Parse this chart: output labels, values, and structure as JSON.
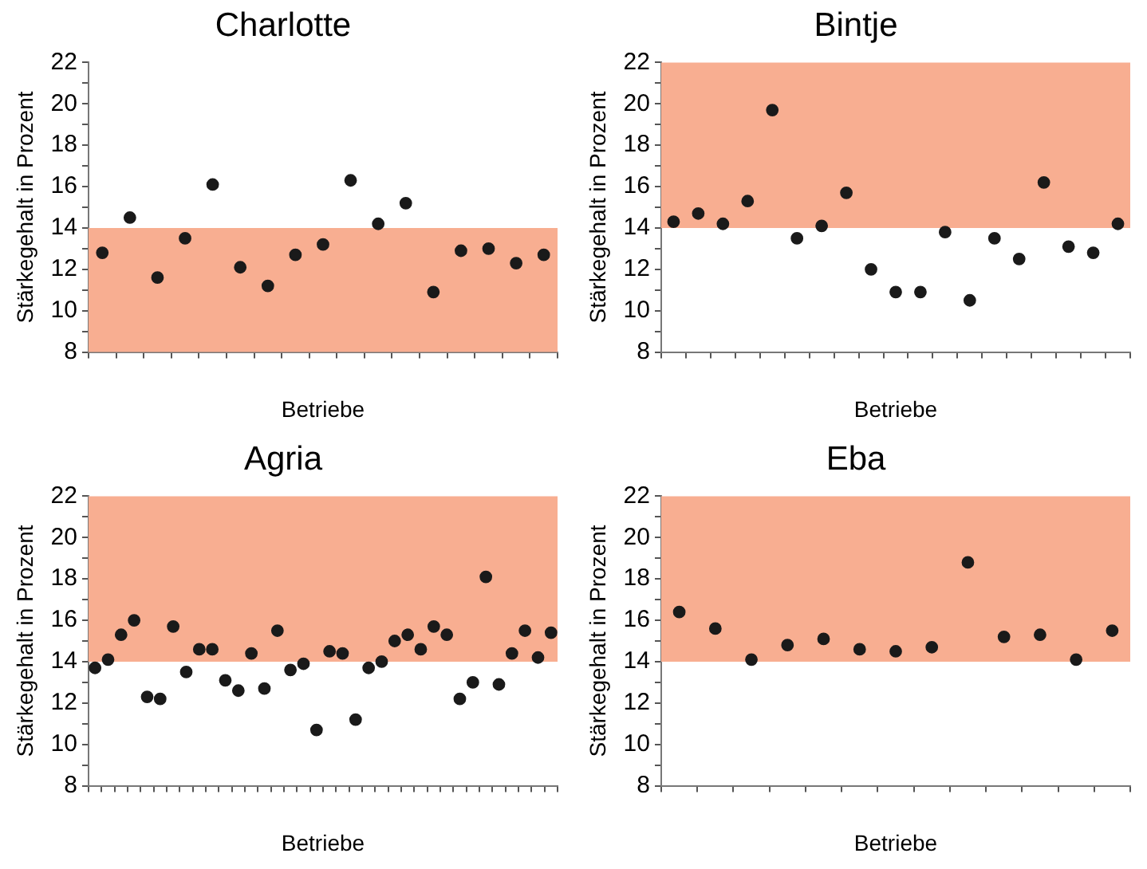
{
  "chart_data": [
    {
      "type": "scatter",
      "title": "Charlotte",
      "xlabel": "Betriebe",
      "ylabel": "Stärkegehalt in Prozent",
      "categories": [
        null,
        null,
        null,
        null,
        null,
        null,
        null,
        null,
        null,
        null,
        null,
        null,
        null,
        null,
        null,
        null,
        null
      ],
      "series": [
        {
          "color": "#1a1a1a",
          "values": [
            12.8,
            14.5,
            11.6,
            13.5,
            16.1,
            12.1,
            11.2,
            12.7,
            13.2,
            16.3,
            14.2,
            15.2,
            10.9,
            12.9,
            13.0,
            12.3,
            12.7
          ]
        }
      ],
      "ylim": [
        8,
        22
      ],
      "yticks": [
        8,
        {
          "value": 9,
          "label": null
        },
        10,
        {
          "value": 11,
          "label": null
        },
        12,
        {
          "value": 13,
          "label": null
        },
        14,
        {
          "value": 15,
          "label": null
        },
        16,
        {
          "value": 17,
          "label": null
        },
        18,
        {
          "value": 19,
          "label": null
        },
        20,
        {
          "value": 21,
          "label": null
        },
        22
      ],
      "bands": [
        {
          "axis": "y",
          "from": 8,
          "to": 14,
          "label": null,
          "color": "#f8ae91"
        }
      ],
      "marker": "circle",
      "grid": false,
      "legend": false
    },
    {
      "type": "scatter",
      "title": "Bintje",
      "xlabel": "Betriebe",
      "ylabel": "Stärkegehalt in Prozent",
      "categories": [
        null,
        null,
        null,
        null,
        null,
        null,
        null,
        null,
        null,
        null,
        null,
        null,
        null,
        null,
        null,
        null,
        null,
        null,
        null
      ],
      "series": [
        {
          "color": "#1a1a1a",
          "values": [
            14.3,
            14.7,
            14.2,
            15.3,
            19.7,
            13.5,
            14.1,
            15.7,
            12.0,
            10.9,
            10.9,
            13.8,
            10.5,
            13.5,
            12.5,
            16.2,
            13.1,
            12.8,
            14.2
          ]
        }
      ],
      "ylim": [
        8,
        22
      ],
      "yticks": [
        8,
        {
          "value": 9,
          "label": null
        },
        10,
        {
          "value": 11,
          "label": null
        },
        12,
        {
          "value": 13,
          "label": null
        },
        14,
        {
          "value": 15,
          "label": null
        },
        16,
        {
          "value": 17,
          "label": null
        },
        18,
        {
          "value": 19,
          "label": null
        },
        20,
        {
          "value": 21,
          "label": null
        },
        22
      ],
      "bands": [
        {
          "axis": "y",
          "from": 14,
          "to": 22,
          "label": null,
          "color": "#f8ae91"
        }
      ],
      "marker": "circle",
      "grid": false,
      "legend": false
    },
    {
      "type": "scatter",
      "title": "Agria",
      "xlabel": "Betriebe",
      "ylabel": "Stärkegehalt in Prozent",
      "categories": [
        null,
        null,
        null,
        null,
        null,
        null,
        null,
        null,
        null,
        null,
        null,
        null,
        null,
        null,
        null,
        null,
        null,
        null,
        null,
        null,
        null,
        null,
        null,
        null,
        null,
        null,
        null,
        null,
        null,
        null,
        null,
        null,
        null,
        null,
        null,
        null
      ],
      "series": [
        {
          "color": "#1a1a1a",
          "values": [
            13.7,
            14.1,
            15.3,
            16.0,
            12.3,
            12.2,
            15.7,
            13.5,
            14.6,
            14.6,
            13.1,
            12.6,
            14.4,
            12.7,
            15.5,
            13.6,
            13.9,
            10.7,
            14.5,
            14.4,
            11.2,
            13.7,
            14.0,
            15.0,
            15.3,
            14.6,
            15.7,
            15.3,
            12.2,
            13.0,
            18.1,
            12.9,
            14.4,
            15.5,
            14.2,
            15.4
          ]
        }
      ],
      "ylim": [
        8,
        22
      ],
      "yticks": [
        8,
        {
          "value": 9,
          "label": null
        },
        10,
        {
          "value": 11,
          "label": null
        },
        12,
        {
          "value": 13,
          "label": null
        },
        14,
        {
          "value": 15,
          "label": null
        },
        16,
        {
          "value": 17,
          "label": null
        },
        18,
        {
          "value": 19,
          "label": null
        },
        20,
        {
          "value": 21,
          "label": null
        },
        22
      ],
      "bands": [
        {
          "axis": "y",
          "from": 14,
          "to": 22,
          "label": null,
          "color": "#f8ae91"
        }
      ],
      "marker": "circle",
      "grid": false,
      "legend": false
    },
    {
      "type": "scatter",
      "title": "Eba",
      "xlabel": "Betriebe",
      "ylabel": "Stärkegehalt in Prozent",
      "categories": [
        null,
        null,
        null,
        null,
        null,
        null,
        null,
        null,
        null,
        null,
        null,
        null,
        null
      ],
      "series": [
        {
          "color": "#1a1a1a",
          "values": [
            16.4,
            15.6,
            14.1,
            14.8,
            15.1,
            14.6,
            14.5,
            14.7,
            18.8,
            15.2,
            15.3,
            14.1,
            15.5
          ]
        }
      ],
      "ylim": [
        8,
        22
      ],
      "yticks": [
        8,
        {
          "value": 9,
          "label": null
        },
        10,
        {
          "value": 11,
          "label": null
        },
        12,
        {
          "value": 13,
          "label": null
        },
        14,
        {
          "value": 15,
          "label": null
        },
        16,
        {
          "value": 17,
          "label": null
        },
        18,
        {
          "value": 19,
          "label": null
        },
        20,
        {
          "value": 21,
          "label": null
        },
        22
      ],
      "bands": [
        {
          "axis": "y",
          "from": 14,
          "to": 22,
          "label": null,
          "color": "#f8ae91"
        }
      ],
      "marker": "circle",
      "grid": false,
      "legend": false
    }
  ]
}
